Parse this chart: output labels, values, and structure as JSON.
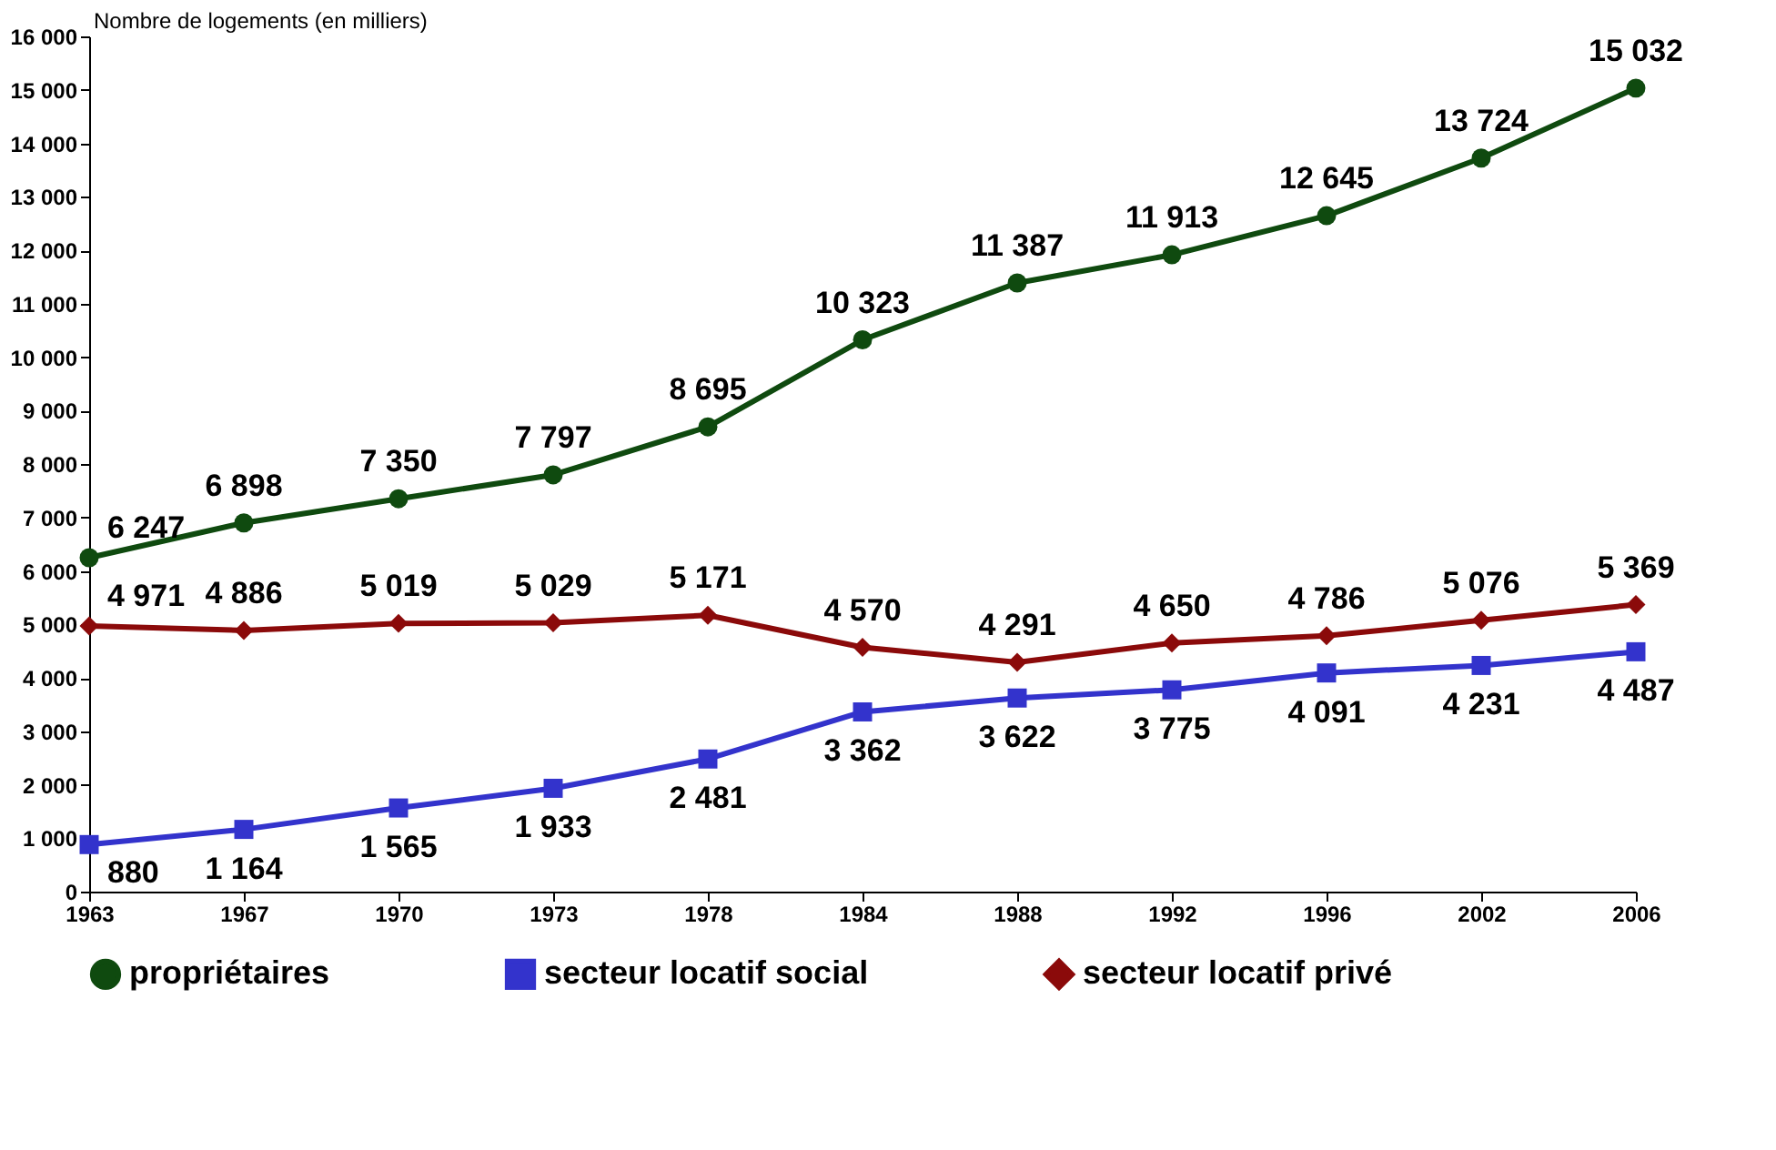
{
  "chart_data": {
    "type": "line",
    "ylabel": "Nombre de logements (en milliers)",
    "categories": [
      "1963",
      "1967",
      "1970",
      "1973",
      "1978",
      "1984",
      "1988",
      "1992",
      "1996",
      "2002",
      "2006"
    ],
    "series": [
      {
        "name": "propriétaires",
        "color": "#0f4a0f",
        "marker": "circle",
        "values": [
          6247,
          6898,
          7350,
          7797,
          8695,
          10323,
          11387,
          11913,
          12645,
          13724,
          15032
        ],
        "value_labels": [
          "6 247",
          "6 898",
          "7 350",
          "7 797",
          "8 695",
          "10 323",
          "11 387",
          "11 913",
          "12 645",
          "13 724",
          "15 032"
        ]
      },
      {
        "name": "secteur locatif social",
        "color": "#3333cc",
        "marker": "square",
        "values": [
          880,
          1164,
          1565,
          1933,
          2481,
          3362,
          3622,
          3775,
          4091,
          4231,
          4487
        ],
        "value_labels": [
          "880",
          "1 164",
          "1 565",
          "1 933",
          "2 481",
          "3 362",
          "3 622",
          "3 775",
          "4 091",
          "4 231",
          "4 487"
        ]
      },
      {
        "name": "secteur locatif privé",
        "color": "#8b0a0a",
        "marker": "diamond",
        "values": [
          4971,
          4886,
          5019,
          5029,
          5171,
          4570,
          4291,
          4650,
          4786,
          5076,
          5369
        ],
        "value_labels": [
          "4 971",
          "4 886",
          "5 019",
          "5 029",
          "5 171",
          "4 570",
          "4 291",
          "4 650",
          "4 786",
          "5 076",
          "5 369"
        ]
      }
    ],
    "ylim": [
      0,
      16000
    ],
    "yticks": [
      0,
      {
        "value": 1000,
        "label": "1 000"
      },
      {
        "value": 2000,
        "label": "2 000"
      },
      {
        "value": 3000,
        "label": "3 000"
      },
      {
        "value": 4000,
        "label": "4 000"
      },
      {
        "value": 5000,
        "label": "5 000"
      },
      {
        "value": 6000,
        "label": "6 000"
      },
      {
        "value": 7000,
        "label": "7 000"
      },
      {
        "value": 8000,
        "label": "8 000"
      },
      {
        "value": 9000,
        "label": "9 000"
      },
      {
        "value": 10000,
        "label": "10 000"
      },
      {
        "value": 11000,
        "label": "11 000"
      },
      {
        "value": 12000,
        "label": "12 000"
      },
      {
        "value": 13000,
        "label": "13 000"
      },
      {
        "value": 14000,
        "label": "14 000"
      },
      {
        "value": 15000,
        "label": "15 000"
      },
      {
        "value": 16000,
        "label": "16 000"
      }
    ],
    "grid": false,
    "legend": "bottom",
    "line_style": "solid"
  }
}
